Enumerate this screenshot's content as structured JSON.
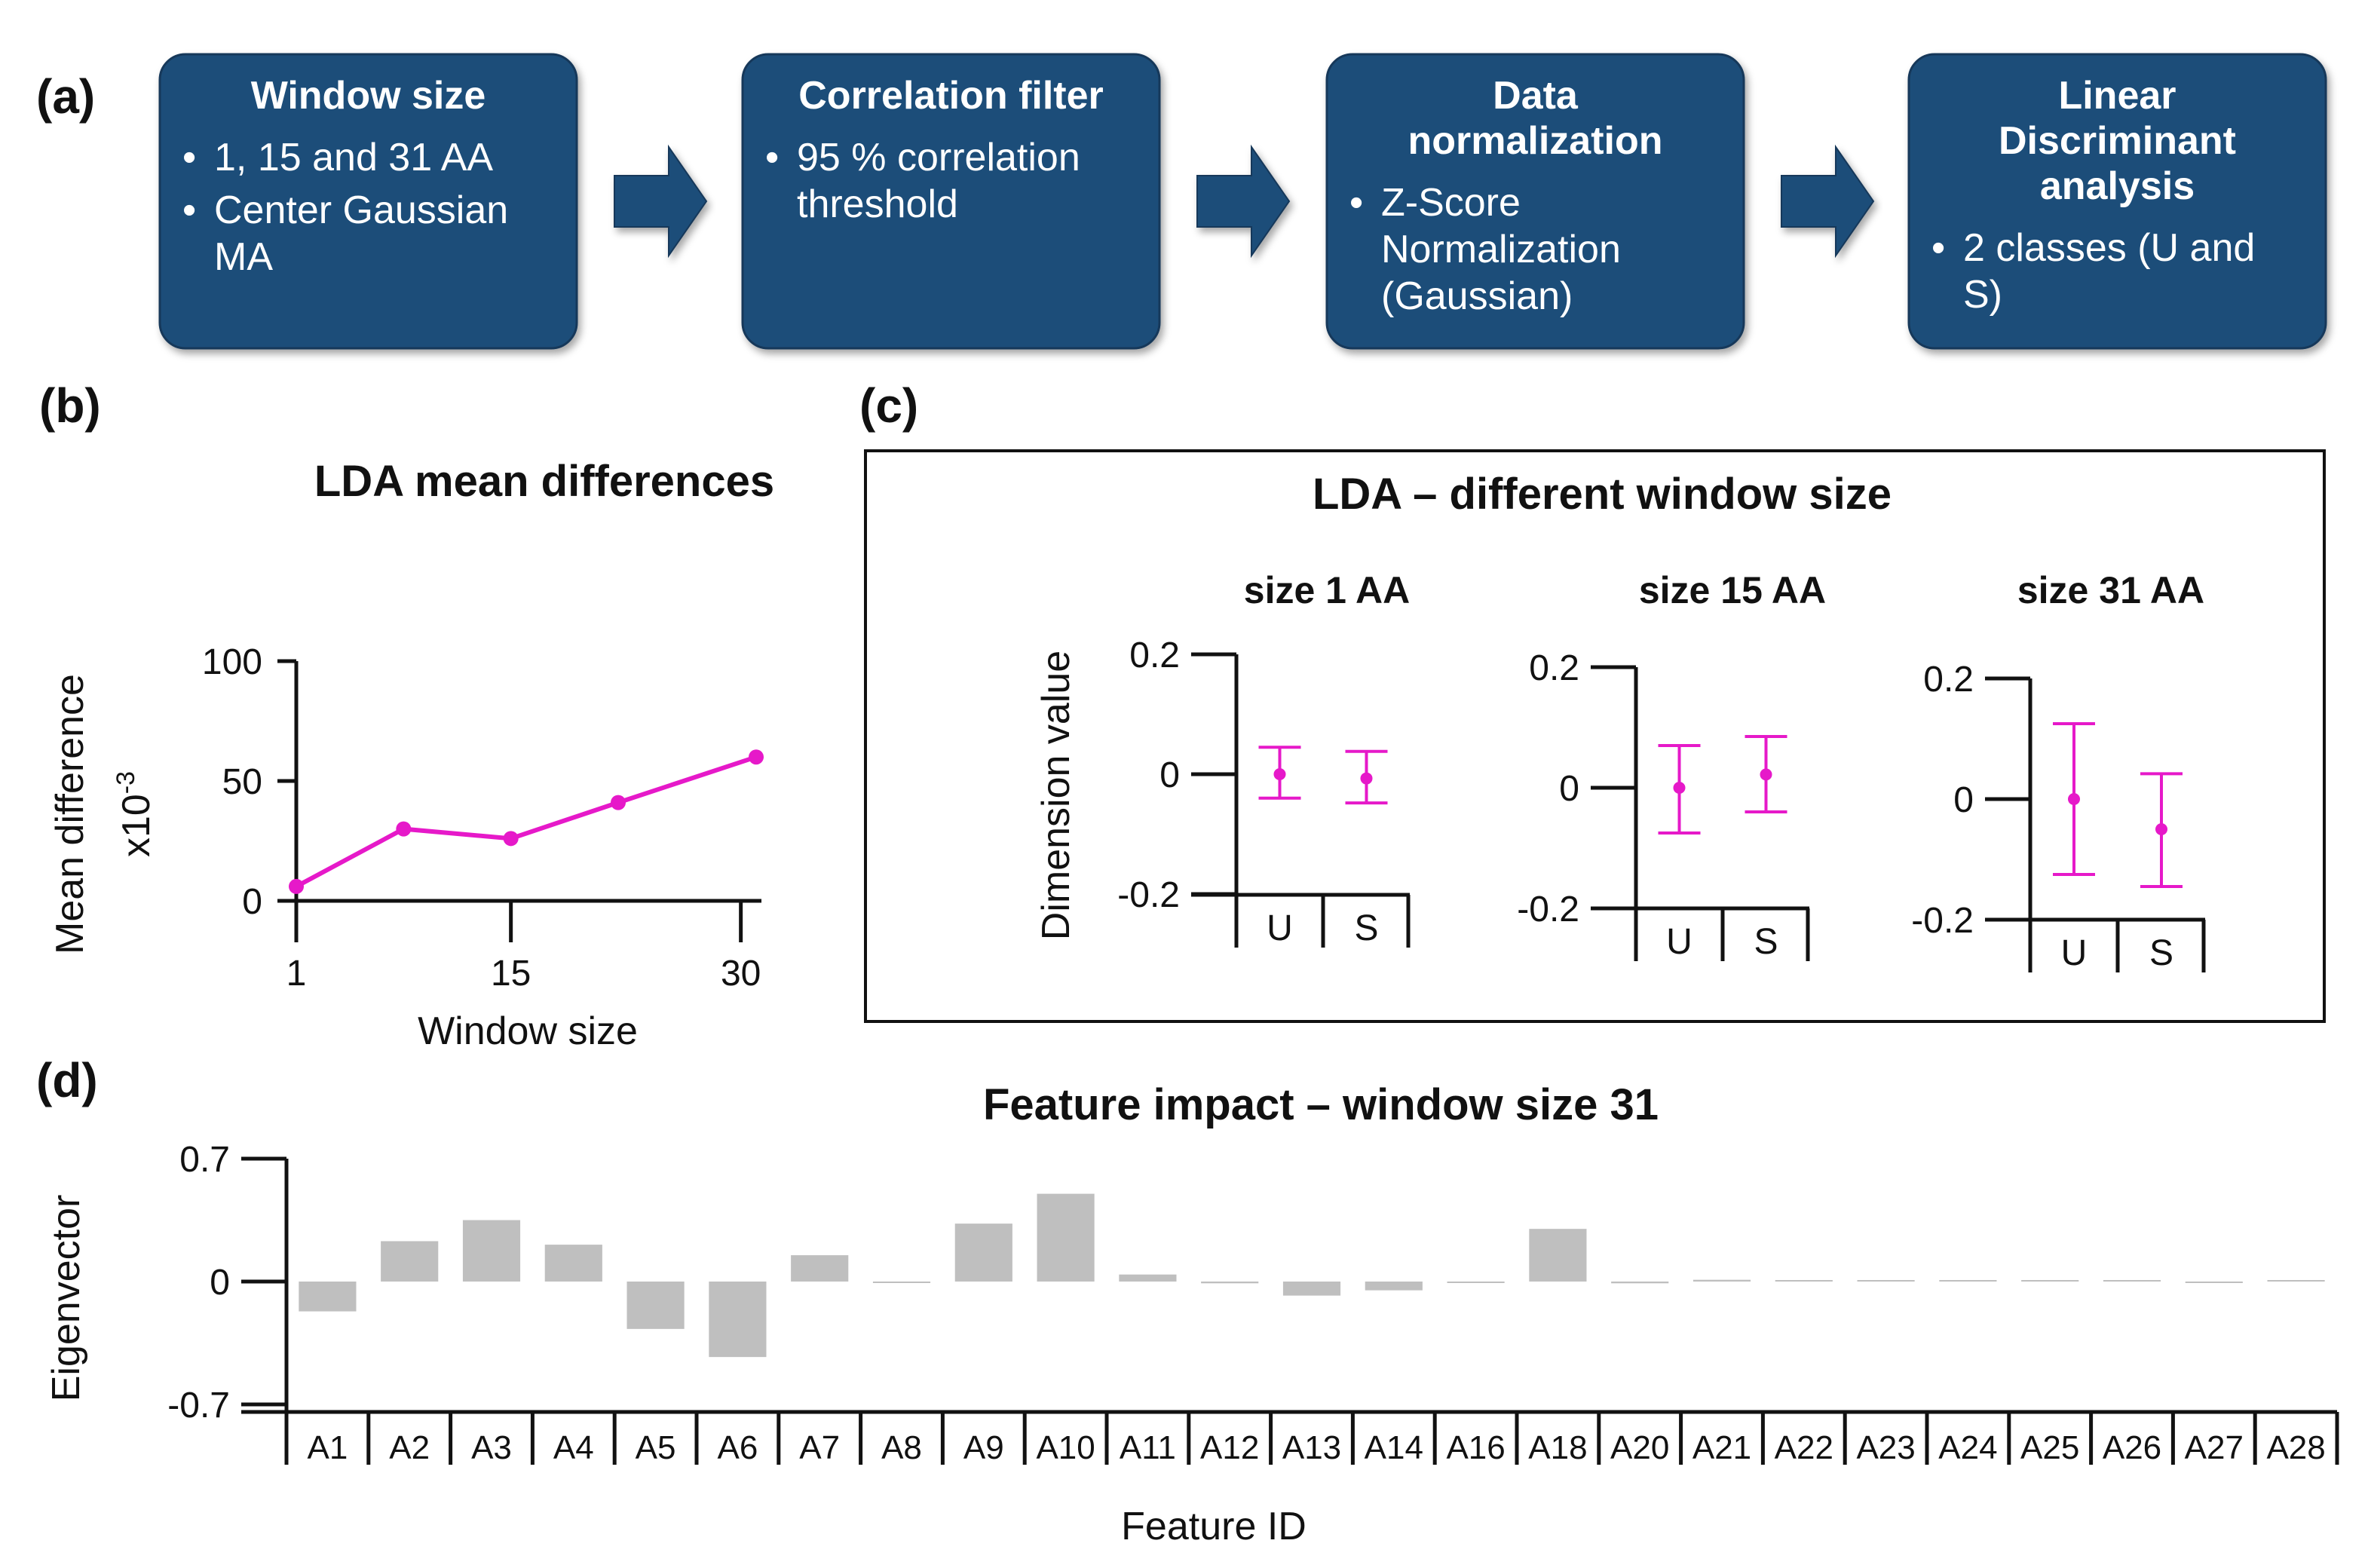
{
  "panel_labels": {
    "a": "(a)",
    "b": "(b)",
    "c": "(c)",
    "d": "(d)"
  },
  "colors": {
    "box_fill": "#1F4E79",
    "box_edge": "#16395A",
    "arrow": "#1F4E79",
    "magenta": "#E619C9",
    "bar": "#BFBFBF",
    "axis": "#111111"
  },
  "pipeline": {
    "boxes": [
      {
        "title": [
          "Window size"
        ],
        "bullets": [
          [
            "1, 15 and 31 AA"
          ],
          [
            "Center Gaussian",
            "MA"
          ]
        ]
      },
      {
        "title": [
          "Correlation filter"
        ],
        "bullets": [
          [
            "95 % correlation",
            "threshold"
          ]
        ]
      },
      {
        "title": [
          "Data",
          "normalization"
        ],
        "bullets": [
          [
            "Z-Score",
            "Normalization",
            "(Gaussian)"
          ]
        ]
      },
      {
        "title": [
          "Linear",
          "Discriminant",
          "analysis"
        ],
        "bullets": [
          [
            "2 classes (U and",
            "S)"
          ]
        ]
      }
    ]
  },
  "chart_data": [
    {
      "id": "b",
      "type": "line",
      "title": "LDA mean differences",
      "xlabel": "Window size",
      "ylabel": "Mean difference",
      "y_multiplier": "x10",
      "y_multiplier_exp": "-3",
      "x": [
        1,
        8,
        15,
        22,
        31
      ],
      "values": [
        6,
        30,
        26,
        41,
        60
      ],
      "xlim": [
        1,
        31
      ],
      "ylim": [
        0,
        100
      ],
      "x_ticks": [
        1,
        15,
        30
      ],
      "y_ticks": [
        0,
        50,
        100
      ],
      "x_tick_labels": [
        "1",
        "15",
        "30"
      ],
      "y_tick_labels": [
        "0",
        "50",
        "100"
      ],
      "grid": false
    },
    {
      "id": "c",
      "type": "errorbar",
      "title": "LDA – different window size",
      "ylabel": "Dimension value",
      "ylim": [
        -0.2,
        0.2
      ],
      "y_tick_labels": [
        "0.2",
        "0",
        "-0.2"
      ],
      "categories": [
        "U",
        "S"
      ],
      "subplots": [
        {
          "title": "size 1 AA",
          "points": [
            {
              "class": "U",
              "mean": 0.0,
              "low": -0.04,
              "high": 0.045
            },
            {
              "class": "S",
              "mean": -0.007,
              "low": -0.048,
              "high": 0.038
            }
          ]
        },
        {
          "title": "size 15 AA",
          "points": [
            {
              "class": "U",
              "mean": 0.0,
              "low": -0.075,
              "high": 0.07
            },
            {
              "class": "S",
              "mean": 0.022,
              "low": -0.04,
              "high": 0.085
            }
          ]
        },
        {
          "title": "size 31 AA",
          "points": [
            {
              "class": "U",
              "mean": 0.0,
              "low": -0.125,
              "high": 0.125
            },
            {
              "class": "S",
              "mean": -0.05,
              "low": -0.145,
              "high": 0.042
            }
          ]
        }
      ],
      "grid": false
    },
    {
      "id": "d",
      "type": "bar",
      "title": "Feature impact – window size 31",
      "xlabel": "Feature ID",
      "ylabel": "Eigenvector",
      "ylim": [
        -0.7,
        0.7
      ],
      "y_tick_labels": [
        "0.7",
        "0",
        "-0.7"
      ],
      "categories": [
        "A1",
        "A2",
        "A3",
        "A4",
        "A5",
        "A6",
        "A7",
        "A8",
        "A9",
        "A10",
        "A11",
        "A12",
        "A13",
        "A14",
        "A16",
        "A18",
        "A20",
        "A21",
        "A22",
        "A23",
        "A24",
        "A25",
        "A26",
        "A27",
        "A28"
      ],
      "values": [
        -0.17,
        0.23,
        0.35,
        0.21,
        -0.27,
        -0.43,
        0.15,
        -0.005,
        0.33,
        0.5,
        0.04,
        -0.01,
        -0.08,
        -0.05,
        -0.004,
        0.3,
        -0.01,
        0.01,
        0.005,
        0.008,
        0.0,
        0.003,
        0.002,
        -0.003,
        0.002
      ],
      "grid": false
    }
  ]
}
